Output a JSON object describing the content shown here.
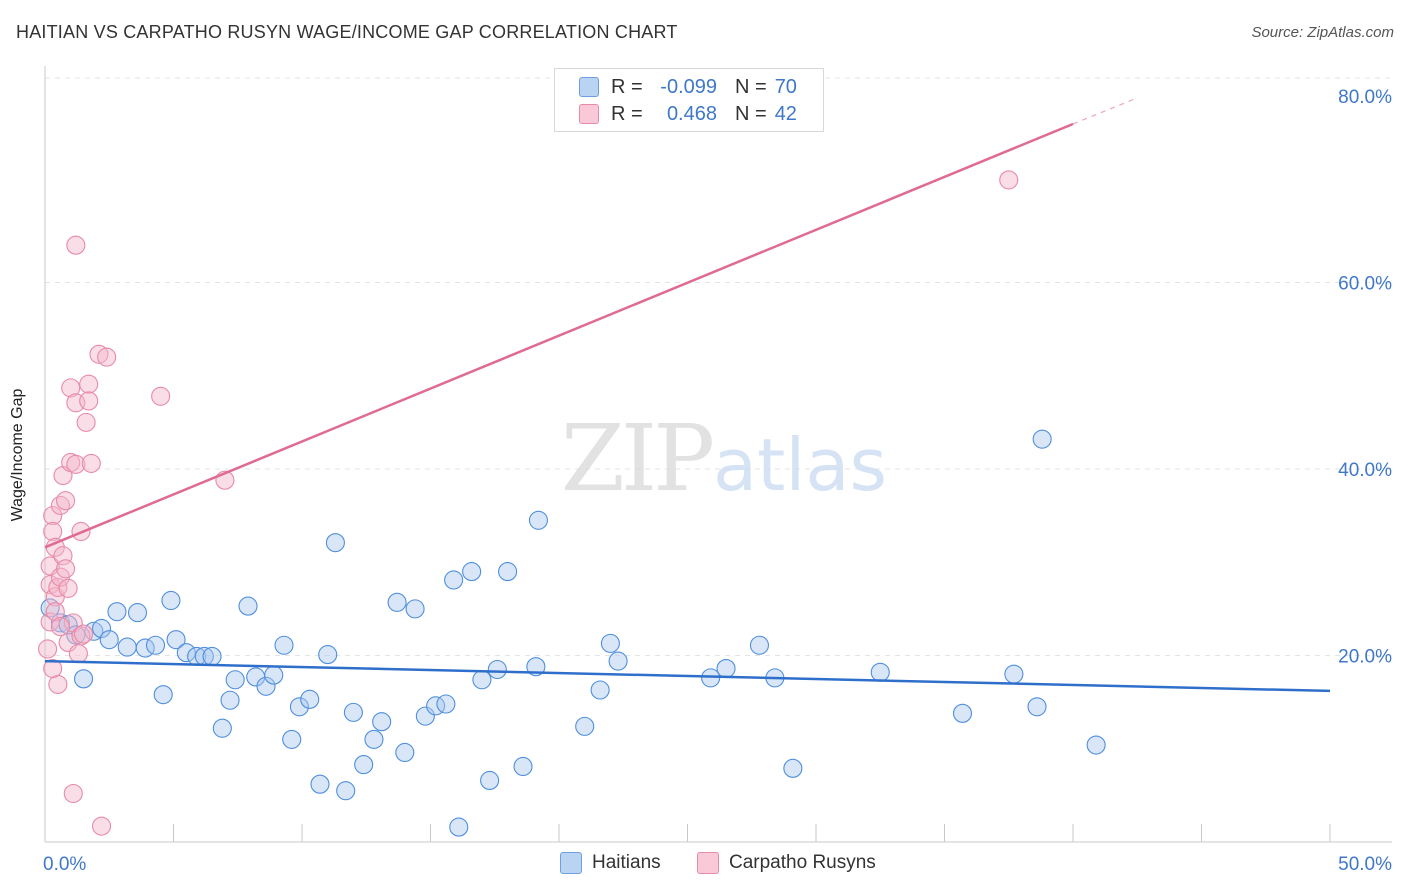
{
  "title": "HAITIAN VS CARPATHO RUSYN WAGE/INCOME GAP CORRELATION CHART",
  "source": "Source: ZipAtlas.com",
  "watermark": {
    "zip": "ZIP",
    "atlas": "atlas"
  },
  "colors": {
    "blue": "#4f8fdc",
    "blue_fill": "#a9c8ef",
    "blue_line": "#2f6fcc",
    "pink": "#e88aa8",
    "pink_fill": "#f5b6c9",
    "pink_line": "#e06b92",
    "value_text": "#3f78c8"
  },
  "legend": [
    {
      "r_label": "R =",
      "r_value": "-0.099",
      "n_label": "N =",
      "n_value": "70"
    },
    {
      "r_label": "R =",
      "r_value": "0.468",
      "n_label": "N =",
      "n_value": "42"
    }
  ],
  "chart_data": {
    "type": "scatter",
    "title": "HAITIAN VS CARPATHO RUSYN WAGE/INCOME GAP CORRELATION CHART",
    "xlabel": "",
    "ylabel": "Wage/Income Gap",
    "xlim": [
      0,
      50
    ],
    "ylim": [
      0,
      80
    ],
    "x_tick_labels": [
      "0.0%",
      "50.0%"
    ],
    "y_tick_labels": [
      {
        "value": 20,
        "label": "20.0%"
      },
      {
        "value": 40,
        "label": "40.0%"
      },
      {
        "value": 60,
        "label": "60.0%"
      },
      {
        "value": 80,
        "label": "80.0%"
      }
    ],
    "grid": true,
    "legend_position": "bottom",
    "series": [
      {
        "name": "Haitians",
        "color": "blue",
        "r": -0.099,
        "n": 70,
        "trend": {
          "x": [
            0,
            50
          ],
          "y": [
            19.4,
            16.2
          ]
        },
        "points": [
          [
            0.2,
            25.1
          ],
          [
            0.6,
            23.5
          ],
          [
            0.9,
            23.3
          ],
          [
            1.2,
            22.2
          ],
          [
            1.5,
            17.5
          ],
          [
            1.9,
            22.6
          ],
          [
            2.2,
            22.9
          ],
          [
            2.5,
            21.7
          ],
          [
            2.8,
            24.7
          ],
          [
            3.2,
            20.9
          ],
          [
            3.6,
            24.6
          ],
          [
            3.9,
            20.8
          ],
          [
            4.3,
            21.1
          ],
          [
            4.6,
            15.8
          ],
          [
            4.9,
            25.9
          ],
          [
            5.1,
            21.7
          ],
          [
            5.5,
            20.3
          ],
          [
            5.9,
            19.9
          ],
          [
            6.2,
            19.9
          ],
          [
            6.5,
            19.9
          ],
          [
            6.9,
            12.2
          ],
          [
            7.2,
            15.2
          ],
          [
            7.4,
            17.4
          ],
          [
            7.9,
            25.3
          ],
          [
            8.2,
            17.7
          ],
          [
            8.6,
            16.7
          ],
          [
            8.9,
            17.9
          ],
          [
            9.3,
            21.1
          ],
          [
            9.6,
            11.0
          ],
          [
            9.9,
            14.5
          ],
          [
            10.3,
            15.3
          ],
          [
            10.7,
            6.2
          ],
          [
            11.0,
            20.1
          ],
          [
            11.3,
            32.1
          ],
          [
            11.7,
            5.5
          ],
          [
            12.0,
            13.9
          ],
          [
            12.4,
            8.3
          ],
          [
            12.8,
            11.0
          ],
          [
            13.1,
            12.9
          ],
          [
            13.7,
            25.7
          ],
          [
            14.0,
            9.6
          ],
          [
            14.4,
            25.0
          ],
          [
            14.8,
            13.5
          ],
          [
            15.2,
            14.6
          ],
          [
            15.6,
            14.8
          ],
          [
            15.9,
            28.1
          ],
          [
            16.1,
            1.6
          ],
          [
            16.6,
            29.0
          ],
          [
            17.0,
            17.4
          ],
          [
            17.3,
            6.6
          ],
          [
            17.6,
            18.5
          ],
          [
            18.0,
            29.0
          ],
          [
            18.6,
            8.1
          ],
          [
            19.1,
            18.8
          ],
          [
            19.2,
            34.5
          ],
          [
            21.0,
            12.4
          ],
          [
            21.6,
            16.3
          ],
          [
            22.0,
            21.3
          ],
          [
            22.3,
            19.4
          ],
          [
            25.9,
            17.6
          ],
          [
            26.5,
            18.6
          ],
          [
            27.8,
            21.1
          ],
          [
            28.4,
            17.6
          ],
          [
            29.1,
            7.9
          ],
          [
            32.5,
            18.2
          ],
          [
            35.7,
            13.8
          ],
          [
            37.7,
            18.0
          ],
          [
            38.6,
            14.5
          ],
          [
            38.8,
            43.2
          ],
          [
            40.9,
            10.4
          ]
        ]
      },
      {
        "name": "Carpatho Rusyns",
        "color": "pink",
        "r": 0.468,
        "n": 42,
        "trend": {
          "x": [
            0,
            40
          ],
          "y": [
            31.6,
            77.0
          ]
        },
        "trend_dashed": {
          "x": [
            40,
            42.5
          ],
          "y": [
            77.0,
            79.8
          ]
        },
        "points": [
          [
            0.1,
            20.7
          ],
          [
            0.2,
            23.6
          ],
          [
            0.2,
            27.6
          ],
          [
            0.2,
            29.6
          ],
          [
            0.3,
            35.0
          ],
          [
            0.3,
            33.3
          ],
          [
            0.4,
            31.6
          ],
          [
            0.4,
            26.3
          ],
          [
            0.4,
            24.7
          ],
          [
            0.5,
            16.9
          ],
          [
            0.5,
            27.3
          ],
          [
            0.6,
            36.1
          ],
          [
            0.6,
            28.4
          ],
          [
            0.7,
            30.7
          ],
          [
            0.7,
            39.3
          ],
          [
            0.8,
            29.3
          ],
          [
            0.8,
            36.6
          ],
          [
            0.9,
            21.4
          ],
          [
            0.9,
            27.2
          ],
          [
            1.0,
            40.7
          ],
          [
            1.0,
            48.7
          ],
          [
            1.1,
            5.2
          ],
          [
            1.1,
            23.5
          ],
          [
            1.2,
            64.0
          ],
          [
            1.2,
            40.5
          ],
          [
            1.2,
            47.1
          ],
          [
            1.3,
            20.2
          ],
          [
            1.4,
            22.1
          ],
          [
            1.4,
            33.3
          ],
          [
            1.5,
            22.3
          ],
          [
            1.6,
            45.0
          ],
          [
            1.7,
            49.1
          ],
          [
            1.7,
            47.3
          ],
          [
            1.8,
            40.6
          ],
          [
            2.1,
            52.3
          ],
          [
            2.2,
            1.7
          ],
          [
            2.4,
            52.0
          ],
          [
            4.5,
            47.8
          ],
          [
            7.0,
            38.8
          ],
          [
            37.5,
            71.0
          ],
          [
            0.3,
            18.6
          ],
          [
            0.6,
            23.1
          ]
        ]
      }
    ]
  }
}
